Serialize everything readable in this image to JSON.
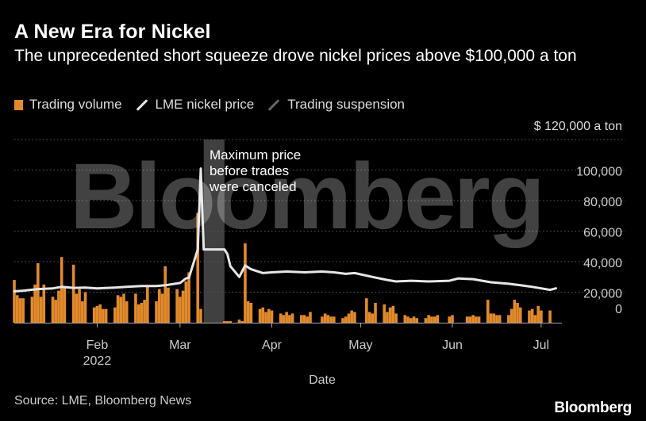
{
  "header": {
    "title": "A New Era for Nickel",
    "subtitle": "The unprecedented short squeeze drove nickel prices above $100,000 a ton"
  },
  "legend": {
    "items": [
      {
        "label": "Trading volume",
        "color": "#e28a2b",
        "kind": "bar"
      },
      {
        "label": "LME nickel price",
        "color": "#e6e6e6",
        "kind": "line"
      },
      {
        "label": "Trading suspension",
        "color": "#666666",
        "kind": "line"
      }
    ]
  },
  "footer": {
    "source": "Source: LME, Bloomberg News",
    "brand": "Bloomberg"
  },
  "watermark": "Bloomberg",
  "chart_data": {
    "type": "bar",
    "xlabel": "Date",
    "ylabel": "",
    "y_unit_label": "$ 120,000  a  ton",
    "ylim": [
      0,
      120000
    ],
    "yticks": [
      0,
      20000,
      40000,
      60000,
      80000,
      100000
    ],
    "ytick_labels": [
      "0",
      "20,000",
      "40,000",
      "60,000",
      "80,000",
      "100,000"
    ],
    "xlim": [
      "2022-01-04",
      "2022-07-08"
    ],
    "xticks": [
      {
        "date": "2022-02-01",
        "label": "Feb",
        "sublabel": "2022"
      },
      {
        "date": "2022-03-01",
        "label": "Mar",
        "sublabel": ""
      },
      {
        "date": "2022-04-01",
        "label": "Apr",
        "sublabel": ""
      },
      {
        "date": "2022-05-01",
        "label": "May",
        "sublabel": ""
      },
      {
        "date": "2022-06-01",
        "label": "Jun",
        "sublabel": ""
      },
      {
        "date": "2022-07-01",
        "label": "Jul",
        "sublabel": ""
      }
    ],
    "grid": true,
    "legend_position": "top-left",
    "suspension": {
      "start": "2022-03-09",
      "end": "2022-03-16",
      "color": "#555555"
    },
    "annotation": {
      "lines": [
        "Maximum price",
        "before trades",
        "were canceled"
      ],
      "date": "2022-03-08",
      "value": 101000
    },
    "series": [
      {
        "name": "Trading volume",
        "kind": "bar",
        "color": "#e28a2b",
        "points": [
          [
            "2022-01-04",
            28000
          ],
          [
            "2022-01-05",
            18000
          ],
          [
            "2022-01-06",
            16000
          ],
          [
            "2022-01-07",
            16000
          ],
          [
            "2022-01-10",
            17000
          ],
          [
            "2022-01-11",
            25000
          ],
          [
            "2022-01-12",
            39000
          ],
          [
            "2022-01-13",
            17000
          ],
          [
            "2022-01-14",
            25000
          ],
          [
            "2022-01-17",
            17000
          ],
          [
            "2022-01-18",
            15000
          ],
          [
            "2022-01-19",
            21000
          ],
          [
            "2022-01-20",
            43000
          ],
          [
            "2022-01-21",
            23000
          ],
          [
            "2022-01-24",
            38000
          ],
          [
            "2022-01-25",
            19000
          ],
          [
            "2022-01-26",
            22000
          ],
          [
            "2022-01-27",
            14000
          ],
          [
            "2022-01-28",
            20000
          ],
          [
            "2022-01-31",
            10000
          ],
          [
            "2022-02-01",
            11000
          ],
          [
            "2022-02-02",
            12000
          ],
          [
            "2022-02-03",
            9000
          ],
          [
            "2022-02-04",
            9000
          ],
          [
            "2022-02-07",
            10000
          ],
          [
            "2022-02-08",
            18000
          ],
          [
            "2022-02-09",
            17000
          ],
          [
            "2022-02-10",
            19000
          ],
          [
            "2022-02-11",
            14000
          ],
          [
            "2022-02-14",
            19000
          ],
          [
            "2022-02-15",
            12000
          ],
          [
            "2022-02-16",
            13000
          ],
          [
            "2022-02-17",
            15000
          ],
          [
            "2022-02-18",
            24000
          ],
          [
            "2022-02-21",
            14000
          ],
          [
            "2022-02-22",
            22000
          ],
          [
            "2022-02-23",
            19000
          ],
          [
            "2022-02-24",
            37000
          ],
          [
            "2022-02-25",
            23000
          ],
          [
            "2022-02-28",
            22000
          ],
          [
            "2022-03-01",
            17000
          ],
          [
            "2022-03-02",
            21000
          ],
          [
            "2022-03-03",
            27000
          ],
          [
            "2022-03-04",
            33000
          ],
          [
            "2022-03-07",
            72000
          ],
          [
            "2022-03-08",
            9000
          ],
          [
            "2022-03-16",
            1000
          ],
          [
            "2022-03-17",
            1000
          ],
          [
            "2022-03-18",
            1000
          ],
          [
            "2022-03-21",
            2000
          ],
          [
            "2022-03-22",
            1000
          ],
          [
            "2022-03-23",
            52000
          ],
          [
            "2022-03-24",
            14000
          ],
          [
            "2022-03-25",
            13000
          ],
          [
            "2022-03-28",
            9000
          ],
          [
            "2022-03-29",
            10000
          ],
          [
            "2022-03-30",
            7000
          ],
          [
            "2022-03-31",
            9000
          ],
          [
            "2022-04-01",
            8000
          ],
          [
            "2022-04-04",
            6000
          ],
          [
            "2022-04-05",
            5000
          ],
          [
            "2022-04-06",
            7000
          ],
          [
            "2022-04-07",
            5000
          ],
          [
            "2022-04-08",
            6000
          ],
          [
            "2022-04-11",
            5000
          ],
          [
            "2022-04-12",
            5000
          ],
          [
            "2022-04-13",
            4000
          ],
          [
            "2022-04-14",
            7000
          ],
          [
            "2022-04-18",
            4000
          ],
          [
            "2022-04-19",
            6000
          ],
          [
            "2022-04-20",
            5000
          ],
          [
            "2022-04-21",
            4000
          ],
          [
            "2022-04-22",
            4000
          ],
          [
            "2022-04-25",
            3000
          ],
          [
            "2022-04-26",
            4000
          ],
          [
            "2022-04-27",
            6000
          ],
          [
            "2022-04-28",
            8000
          ],
          [
            "2022-04-29",
            7000
          ],
          [
            "2022-05-03",
            16000
          ],
          [
            "2022-05-04",
            7000
          ],
          [
            "2022-05-05",
            6000
          ],
          [
            "2022-05-06",
            13000
          ],
          [
            "2022-05-09",
            12000
          ],
          [
            "2022-05-10",
            7000
          ],
          [
            "2022-05-11",
            10000
          ],
          [
            "2022-05-12",
            11000
          ],
          [
            "2022-05-13",
            6000
          ],
          [
            "2022-05-16",
            5000
          ],
          [
            "2022-05-17",
            4000
          ],
          [
            "2022-05-18",
            3000
          ],
          [
            "2022-05-19",
            4000
          ],
          [
            "2022-05-20",
            3000
          ],
          [
            "2022-05-23",
            3000
          ],
          [
            "2022-05-24",
            5000
          ],
          [
            "2022-05-25",
            4000
          ],
          [
            "2022-05-26",
            4000
          ],
          [
            "2022-05-27",
            5000
          ],
          [
            "2022-05-31",
            4000
          ],
          [
            "2022-06-01",
            5000
          ],
          [
            "2022-06-06",
            4000
          ],
          [
            "2022-06-07",
            4000
          ],
          [
            "2022-06-08",
            5000
          ],
          [
            "2022-06-09",
            4000
          ],
          [
            "2022-06-10",
            4000
          ],
          [
            "2022-06-13",
            15000
          ],
          [
            "2022-06-14",
            6000
          ],
          [
            "2022-06-15",
            6000
          ],
          [
            "2022-06-16",
            5000
          ],
          [
            "2022-06-17",
            5000
          ],
          [
            "2022-06-20",
            5000
          ],
          [
            "2022-06-21",
            9000
          ],
          [
            "2022-06-22",
            15000
          ],
          [
            "2022-06-23",
            13000
          ],
          [
            "2022-06-24",
            10000
          ],
          [
            "2022-06-27",
            8000
          ],
          [
            "2022-06-28",
            9000
          ],
          [
            "2022-06-29",
            5000
          ],
          [
            "2022-06-30",
            11000
          ],
          [
            "2022-07-01",
            8000
          ],
          [
            "2022-07-04",
            8000
          ]
        ]
      },
      {
        "name": "LME nickel price",
        "kind": "line",
        "color": "#e6e6e6",
        "points": [
          [
            "2022-01-04",
            20500
          ],
          [
            "2022-01-07",
            21000
          ],
          [
            "2022-01-12",
            22000
          ],
          [
            "2022-01-17",
            22500
          ],
          [
            "2022-01-20",
            23500
          ],
          [
            "2022-01-24",
            22800
          ],
          [
            "2022-01-28",
            23000
          ],
          [
            "2022-02-01",
            22500
          ],
          [
            "2022-02-07",
            23000
          ],
          [
            "2022-02-11",
            23500
          ],
          [
            "2022-02-16",
            24000
          ],
          [
            "2022-02-21",
            24000
          ],
          [
            "2022-02-24",
            24500
          ],
          [
            "2022-03-01",
            26000
          ],
          [
            "2022-03-03",
            29000
          ],
          [
            "2022-03-04",
            29500
          ],
          [
            "2022-03-07",
            48000
          ],
          [
            "2022-03-08",
            101000
          ],
          [
            "2022-03-09",
            48000
          ],
          [
            "2022-03-16",
            48000
          ],
          [
            "2022-03-17",
            45000
          ],
          [
            "2022-03-18",
            37000
          ],
          [
            "2022-03-21",
            30000
          ],
          [
            "2022-03-23",
            37500
          ],
          [
            "2022-03-25",
            35000
          ],
          [
            "2022-03-29",
            32500
          ],
          [
            "2022-04-01",
            33000
          ],
          [
            "2022-04-06",
            33500
          ],
          [
            "2022-04-12",
            33000
          ],
          [
            "2022-04-18",
            33500
          ],
          [
            "2022-04-22",
            33000
          ],
          [
            "2022-04-26",
            32000
          ],
          [
            "2022-04-29",
            32500
          ],
          [
            "2022-05-05",
            30000
          ],
          [
            "2022-05-10",
            28000
          ],
          [
            "2022-05-13",
            27000
          ],
          [
            "2022-05-18",
            27500
          ],
          [
            "2022-05-24",
            27000
          ],
          [
            "2022-05-31",
            27500
          ],
          [
            "2022-06-03",
            29000
          ],
          [
            "2022-06-08",
            28500
          ],
          [
            "2022-06-14",
            26500
          ],
          [
            "2022-06-20",
            25500
          ],
          [
            "2022-06-24",
            24500
          ],
          [
            "2022-06-28",
            23500
          ],
          [
            "2022-07-01",
            22500
          ],
          [
            "2022-07-04",
            21500
          ],
          [
            "2022-07-06",
            22500
          ]
        ]
      }
    ]
  }
}
